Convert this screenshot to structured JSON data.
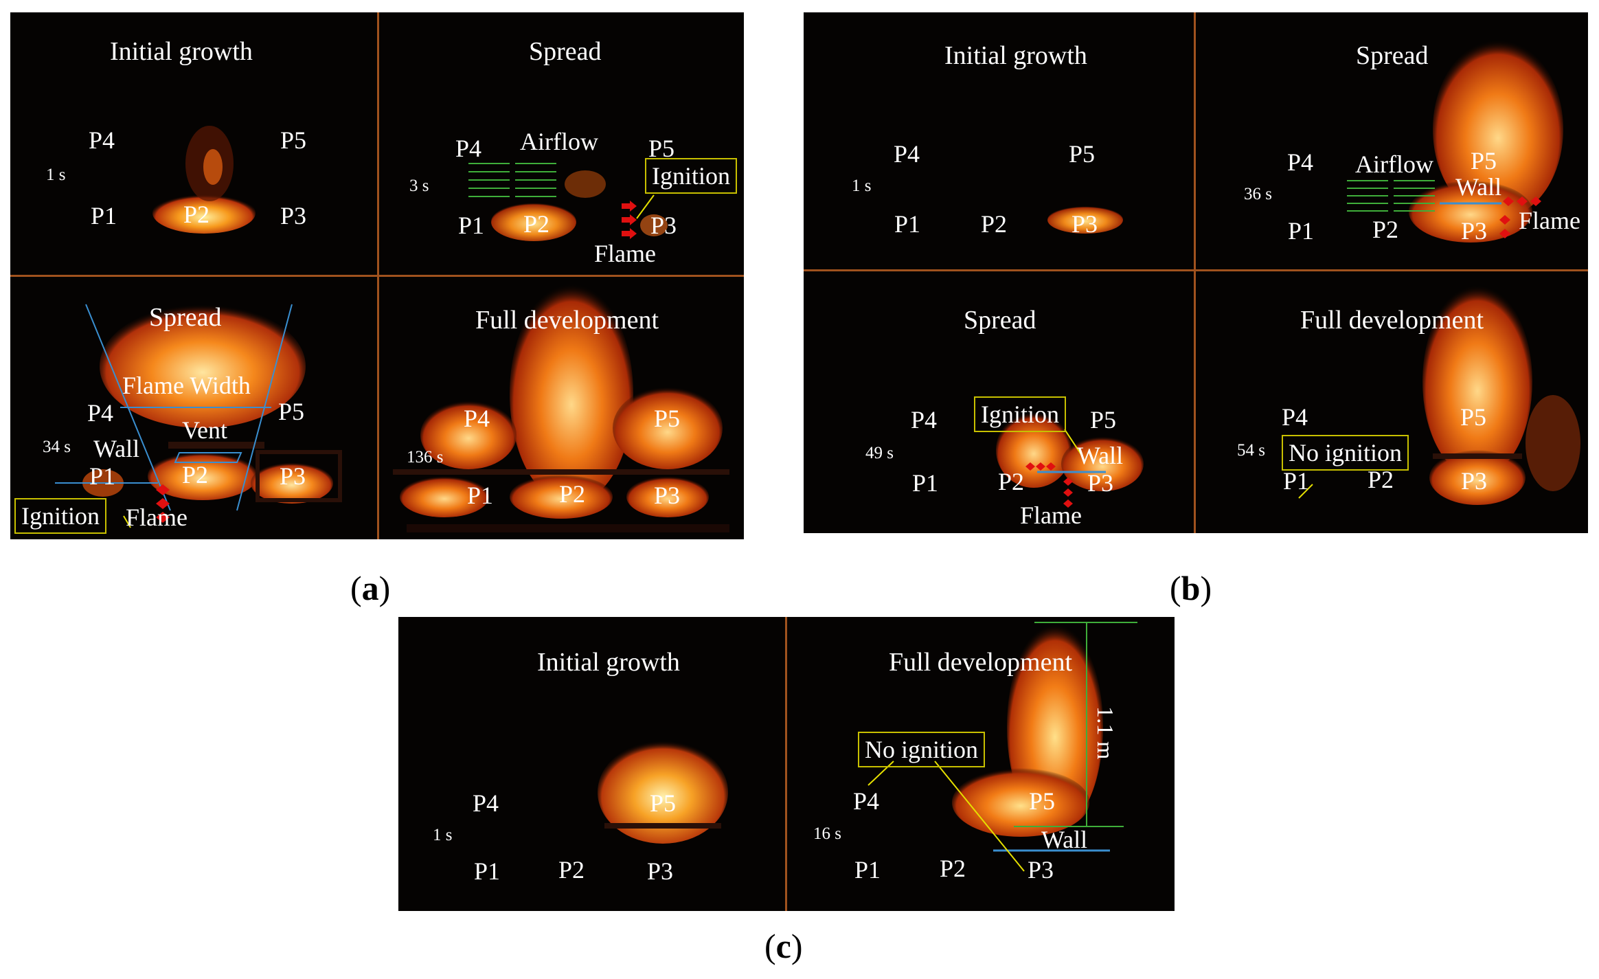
{
  "figure_a": {
    "caption": "a",
    "panels": [
      {
        "phase": "Initial growth",
        "time": "1 s",
        "positions": [
          "P4",
          "P5",
          "P1",
          "P2",
          "P3"
        ]
      },
      {
        "phase": "Spread",
        "time": "3 s",
        "positions": [
          "P4",
          "P5",
          "P1",
          "P2",
          "P3"
        ],
        "annotations": {
          "airflow": "Airflow",
          "ignition": "Ignition",
          "flame": "Flame"
        }
      },
      {
        "phase": "Spread",
        "time": "34 s",
        "positions": [
          "P4",
          "P5",
          "P1",
          "P2",
          "P3"
        ],
        "annotations": {
          "flame_width": "Flame Width",
          "vent": "Vent",
          "wall": "Wall",
          "ignition": "Ignition",
          "flame": "Flame"
        }
      },
      {
        "phase": "Full development",
        "time": "136 s",
        "positions": [
          "P4",
          "P5",
          "P1",
          "P2",
          "P3"
        ]
      }
    ]
  },
  "figure_b": {
    "caption": "b",
    "panels": [
      {
        "phase": "Initial growth",
        "time": "1 s",
        "positions": [
          "P4",
          "P5",
          "P1",
          "P2",
          "P3"
        ]
      },
      {
        "phase": "Spread",
        "time": "36 s",
        "positions": [
          "P4",
          "P5",
          "P1",
          "P2",
          "P3"
        ],
        "annotations": {
          "airflow": "Airflow",
          "wall": "Wall",
          "flame": "Flame"
        }
      },
      {
        "phase": "Spread",
        "time": "49 s",
        "positions": [
          "P4",
          "P5",
          "P1",
          "P2",
          "P3"
        ],
        "annotations": {
          "ignition": "Ignition",
          "wall": "Wall",
          "flame": "Flame"
        }
      },
      {
        "phase": "Full development",
        "time": "54 s",
        "positions": [
          "P4",
          "P5",
          "P1",
          "P2",
          "P3"
        ],
        "annotations": {
          "no_ignition": "No ignition"
        }
      }
    ]
  },
  "figure_c": {
    "caption": "c",
    "panels": [
      {
        "phase": "Initial growth",
        "time": "1 s",
        "positions": [
          "P4",
          "P5",
          "P1",
          "P2",
          "P3"
        ]
      },
      {
        "phase": "Full development",
        "time": "16 s",
        "positions": [
          "P4",
          "P5",
          "P1",
          "P2",
          "P3"
        ],
        "annotations": {
          "no_ignition": "No ignition",
          "wall": "Wall",
          "height": "1.1 m"
        }
      }
    ]
  },
  "colors": {
    "background": "#050302",
    "divider": "#a0521e",
    "annotation_box": "#c8c000",
    "wall_line": "#3a8fd0",
    "airflow_arrow": "#3fae3a",
    "flame_marker": "#e01010",
    "flame_core": "#ffd36a",
    "flame_outer": "#e0520a"
  }
}
